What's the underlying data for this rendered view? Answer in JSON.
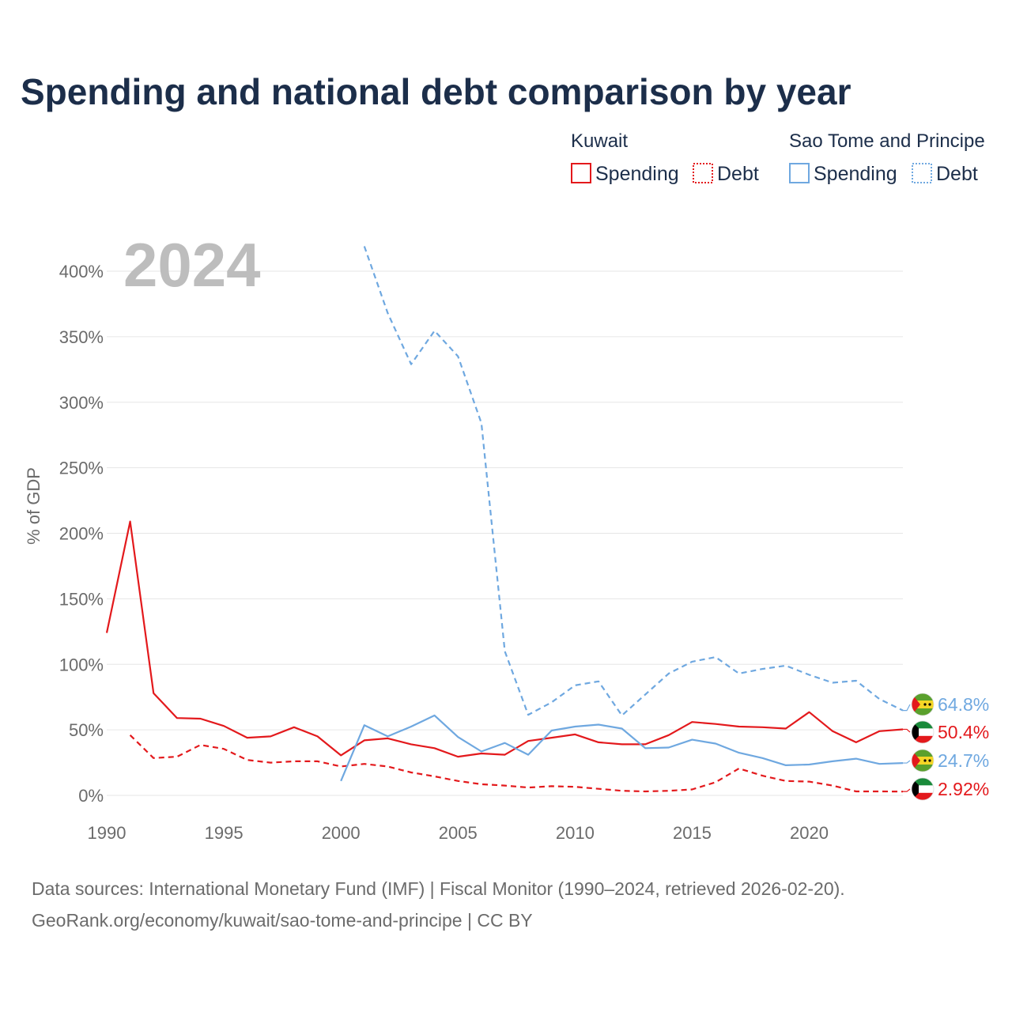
{
  "chart_data": {
    "type": "line",
    "title": "Spending and national debt comparison by year",
    "year_display": "2024",
    "ylabel": "% of GDP",
    "xlabel": "",
    "xlim": [
      1990,
      2024
    ],
    "ylim": [
      0,
      420
    ],
    "y_ticks": [
      0,
      50,
      100,
      150,
      200,
      250,
      300,
      350,
      400
    ],
    "y_tick_labels": [
      "0%",
      "50%",
      "100%",
      "150%",
      "200%",
      "250%",
      "300%",
      "350%",
      "400%"
    ],
    "x_ticks": [
      1990,
      1995,
      2000,
      2005,
      2010,
      2015,
      2020
    ],
    "x_tick_labels": [
      "1990",
      "1995",
      "2000",
      "2005",
      "2010",
      "2015",
      "2020"
    ],
    "legend": {
      "groups": [
        {
          "country": "Kuwait",
          "color": "#e3191c",
          "items": [
            "Spending",
            "Debt"
          ]
        },
        {
          "country": "Sao Tome and Principe",
          "color": "#6fa8e0",
          "items": [
            "Spending",
            "Debt"
          ]
        }
      ]
    },
    "series": [
      {
        "name": "Kuwait Spending",
        "country": "Kuwait",
        "metric": "Spending",
        "color": "#e3191c",
        "dashed": false,
        "end_label": "50.4%",
        "x": [
          1990,
          1991,
          1992,
          1993,
          1994,
          1995,
          1996,
          1997,
          1998,
          1999,
          2000,
          2001,
          2002,
          2003,
          2004,
          2005,
          2006,
          2007,
          2008,
          2009,
          2010,
          2011,
          2012,
          2013,
          2014,
          2015,
          2016,
          2017,
          2018,
          2019,
          2020,
          2021,
          2022,
          2023,
          2024
        ],
        "values": [
          124,
          209,
          78,
          59,
          58.5,
          53,
          44,
          45,
          52,
          45,
          30.5,
          42,
          43.5,
          39,
          36,
          29.5,
          32,
          31,
          41.5,
          44,
          46.5,
          40.5,
          39,
          39,
          46,
          56,
          54.5,
          52.5,
          52,
          51,
          63.5,
          49,
          40.5,
          49,
          50.4
        ]
      },
      {
        "name": "Kuwait Debt",
        "country": "Kuwait",
        "metric": "Debt",
        "color": "#e3191c",
        "dashed": true,
        "end_label": "2.92%",
        "x": [
          1991,
          1992,
          1993,
          1994,
          1995,
          1996,
          1997,
          1998,
          1999,
          2000,
          2001,
          2002,
          2003,
          2004,
          2005,
          2006,
          2007,
          2008,
          2009,
          2010,
          2011,
          2012,
          2013,
          2014,
          2015,
          2016,
          2017,
          2018,
          2019,
          2020,
          2021,
          2022,
          2023,
          2024
        ],
        "values": [
          46,
          28.5,
          29.5,
          38.5,
          35.5,
          27,
          25,
          26,
          26,
          22,
          24,
          22,
          17.5,
          14.5,
          11,
          8.5,
          7.5,
          6,
          7,
          6.5,
          5,
          3.5,
          3,
          3.5,
          4.5,
          10,
          20.5,
          15,
          11,
          10.5,
          7.5,
          3,
          3,
          2.92
        ]
      },
      {
        "name": "Sao Tome and Principe Spending",
        "country": "Sao Tome and Principe",
        "metric": "Spending",
        "color": "#6fa8e0",
        "dashed": false,
        "end_label": "24.7%",
        "x": [
          2000,
          2001,
          2002,
          2003,
          2004,
          2005,
          2006,
          2007,
          2008,
          2009,
          2010,
          2011,
          2012,
          2013,
          2014,
          2015,
          2016,
          2017,
          2018,
          2019,
          2020,
          2021,
          2022,
          2023,
          2024
        ],
        "values": [
          11,
          53.5,
          45,
          52.5,
          61,
          44.5,
          33.5,
          40,
          31,
          49.5,
          52.5,
          54,
          51,
          36,
          36.5,
          42.5,
          39.5,
          32.5,
          28.5,
          23,
          23.5,
          26,
          28,
          24,
          24.7
        ]
      },
      {
        "name": "Sao Tome and Principe Debt",
        "country": "Sao Tome and Principe",
        "metric": "Debt",
        "color": "#6fa8e0",
        "dashed": true,
        "end_label": "64.8%",
        "x": [
          2001,
          2002,
          2003,
          2004,
          2005,
          2006,
          2007,
          2008,
          2009,
          2010,
          2011,
          2012,
          2013,
          2014,
          2015,
          2016,
          2017,
          2018,
          2019,
          2020,
          2021,
          2022,
          2023,
          2024
        ],
        "values": [
          419,
          368,
          329,
          354.5,
          335,
          284,
          110,
          61.5,
          71,
          84,
          87,
          61,
          77,
          93,
          102,
          105.5,
          93,
          96.5,
          99,
          92,
          86,
          87.5,
          73.5,
          64.8
        ]
      }
    ]
  },
  "source": {
    "line1": "Data sources: International Monetary Fund (IMF) | Fiscal Monitor (1990–2024, retrieved 2026-02-20).",
    "line2": "GeoRank.org/economy/kuwait/sao-tome-and-principe | CC BY"
  }
}
